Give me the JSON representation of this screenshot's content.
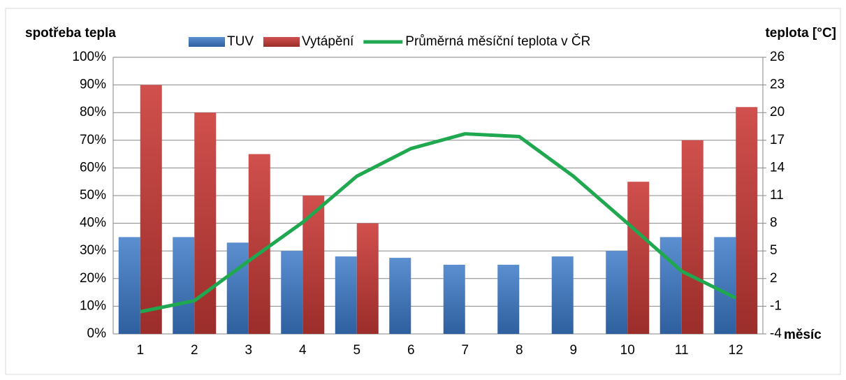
{
  "chart_data": {
    "type": "bar",
    "y_label": "spotřeba tepla",
    "y2_label": "teplota [°C]",
    "x_label": "měsíc",
    "categories": [
      "1",
      "2",
      "3",
      "4",
      "5",
      "6",
      "7",
      "8",
      "9",
      "10",
      "11",
      "12"
    ],
    "series": [
      {
        "name": "TUV",
        "color": "#4a7ebb",
        "values": [
          35,
          35,
          33,
          30,
          28,
          27.5,
          25,
          25,
          28,
          30,
          35,
          35
        ]
      },
      {
        "name": "Vytápění",
        "color": "#be4b48",
        "values": [
          90,
          80,
          65,
          50,
          40,
          0,
          0,
          0,
          0,
          55,
          70,
          82
        ]
      },
      {
        "name": "Průměrná měsíční teplota v ČR",
        "color": "#1fa84f",
        "axis": "y2",
        "type": "line",
        "values": [
          -1.6,
          -0.4,
          3.9,
          8.1,
          13.1,
          16.1,
          17.7,
          17.4,
          13.1,
          8.0,
          2.8,
          -0.1
        ]
      }
    ],
    "ylim": [
      0,
      100
    ],
    "yticks": [
      {
        "value": 0,
        "label": "0%"
      },
      {
        "value": 10,
        "label": "10%"
      },
      {
        "value": 20,
        "label": "20%"
      },
      {
        "value": 30,
        "label": "30%"
      },
      {
        "value": 40,
        "label": "40%"
      },
      {
        "value": 50,
        "label": "50%"
      },
      {
        "value": 60,
        "label": "60%"
      },
      {
        "value": 70,
        "label": "70%"
      },
      {
        "value": 80,
        "label": "80%"
      },
      {
        "value": 90,
        "label": "90%"
      },
      {
        "value": 100,
        "label": "100%"
      }
    ],
    "y2lim": [
      -4,
      26
    ],
    "y2ticks": [
      -4,
      -1,
      2,
      5,
      8,
      11,
      14,
      17,
      20,
      23,
      26
    ],
    "grid": true
  }
}
